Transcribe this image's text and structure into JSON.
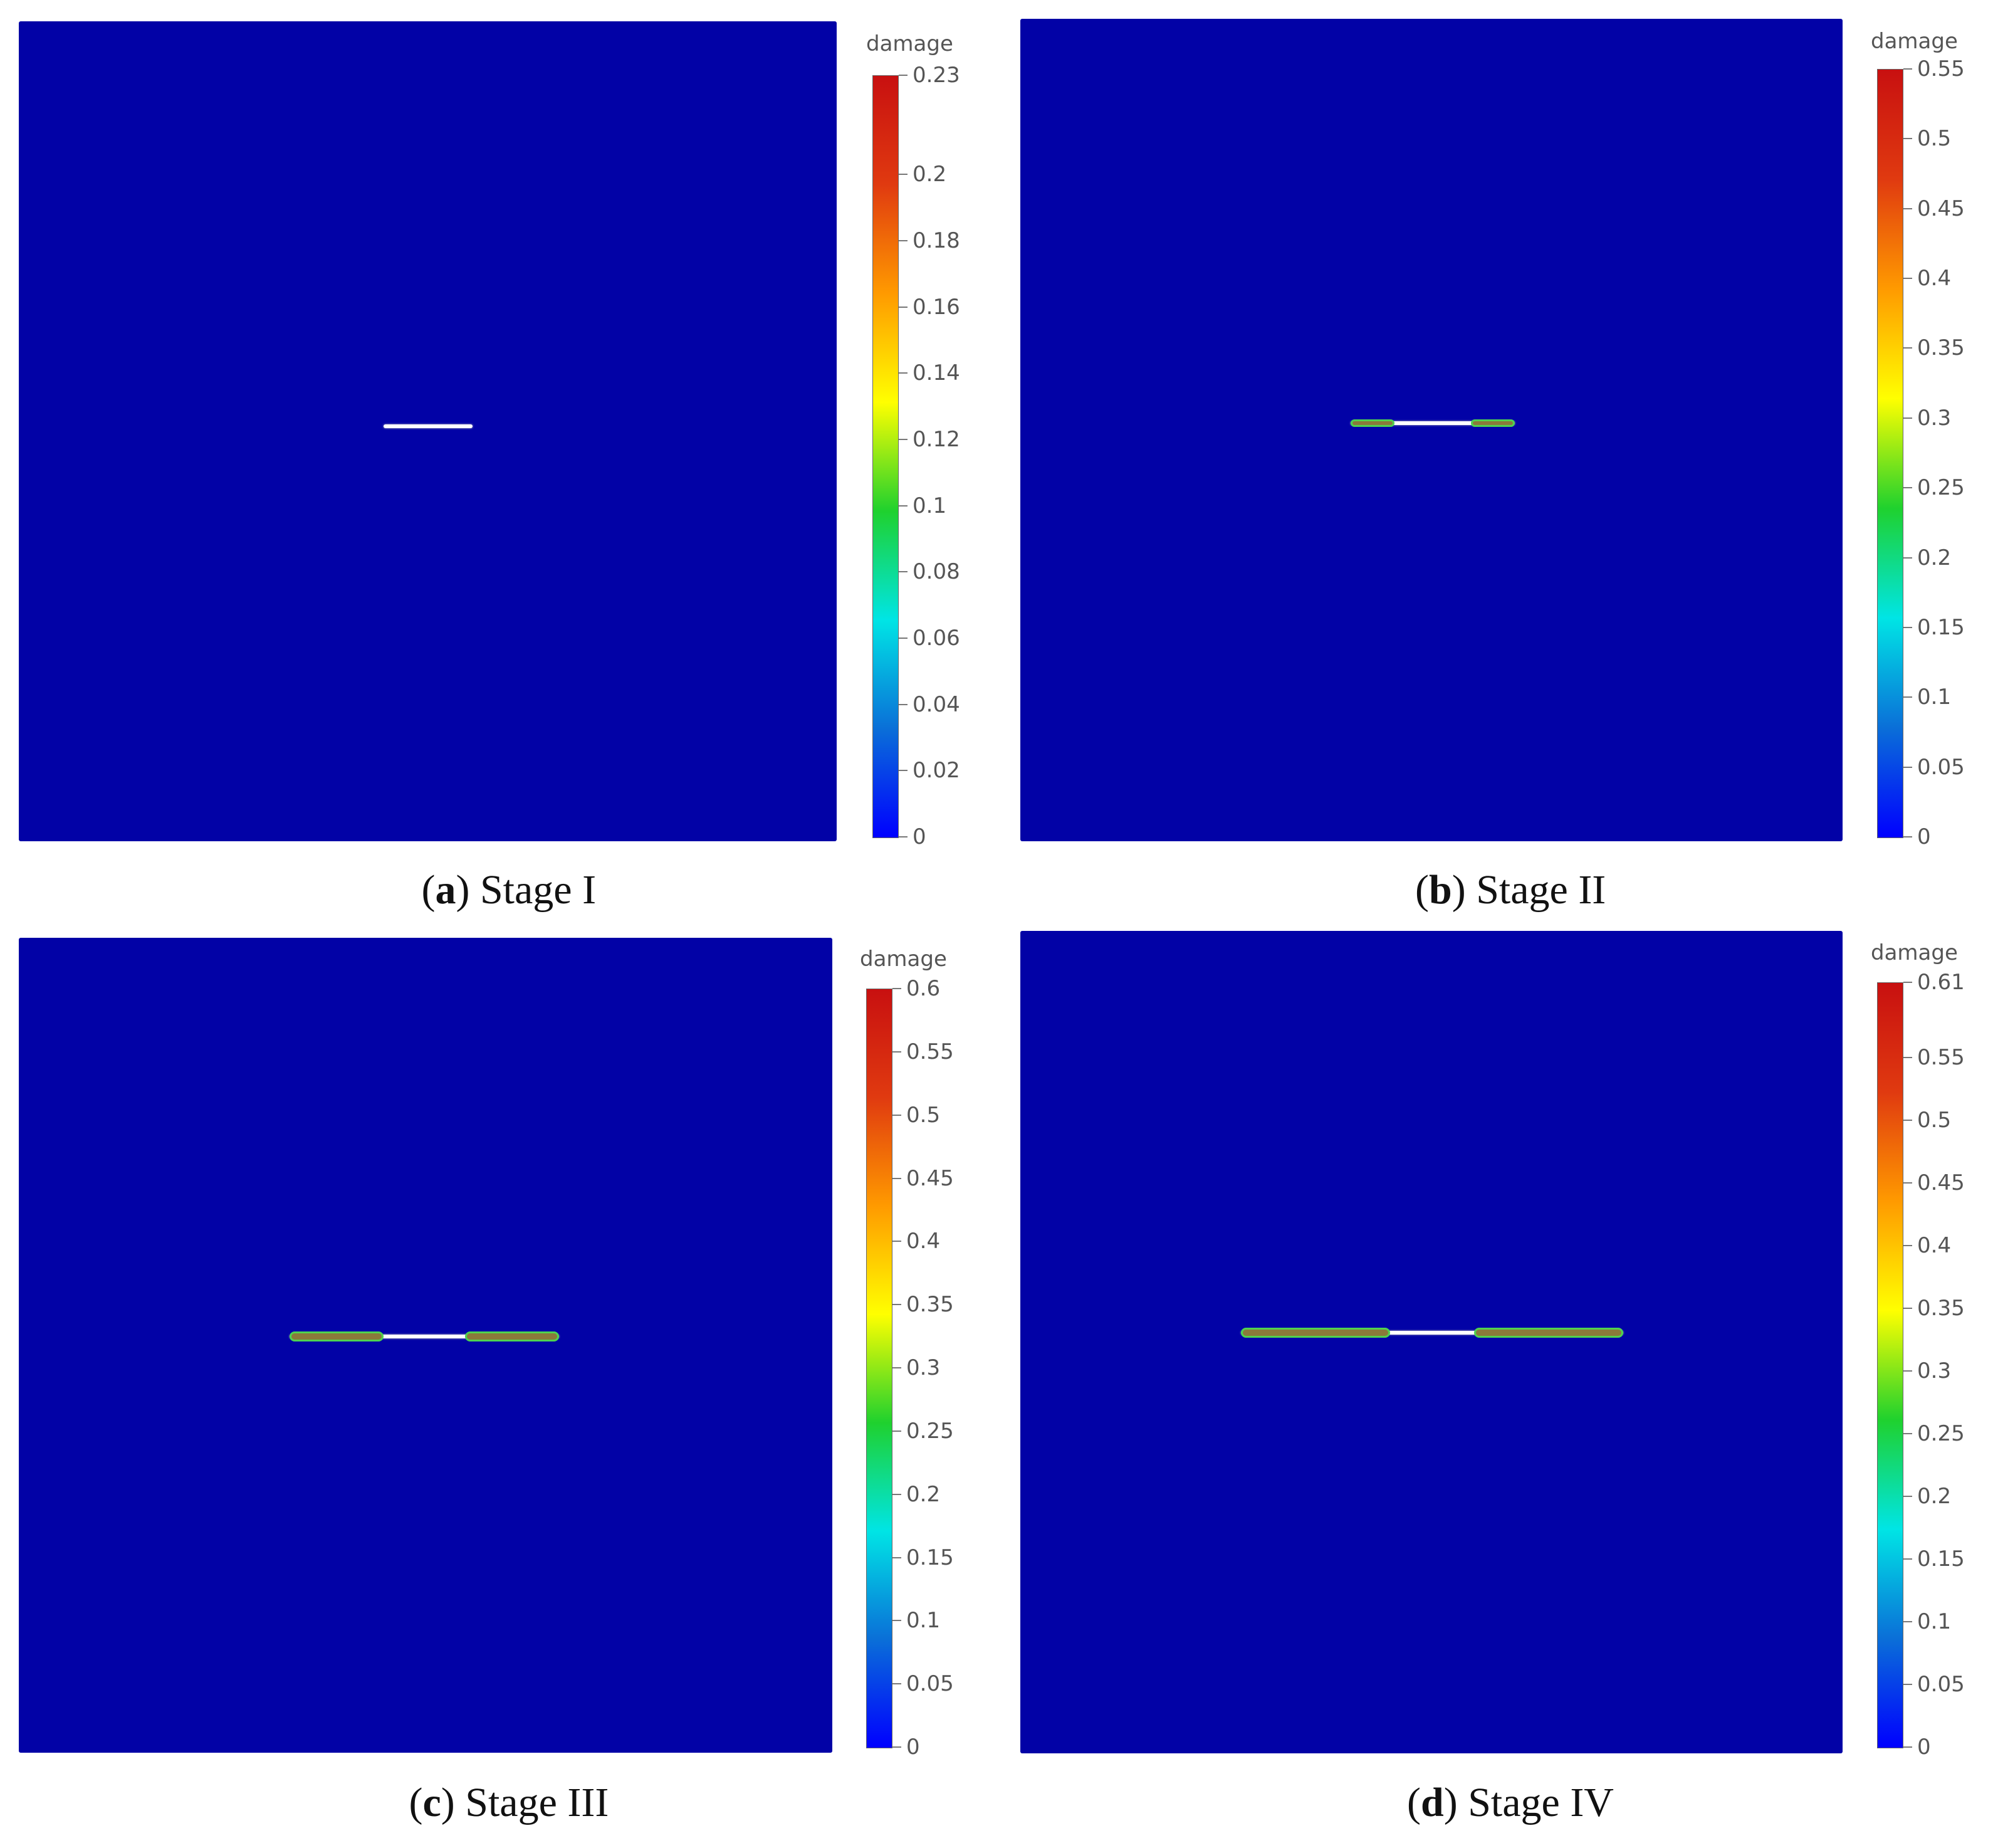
{
  "colormap": {
    "stops": [
      "#0000ff",
      "#0a6fd8",
      "#00e5e5",
      "#1fd12e",
      "#ffff00",
      "#ff9a00",
      "#e03a10",
      "#c81010"
    ],
    "field_color": "#0202a6",
    "crack_core_color": "#ffffff",
    "crack_tip_color": "#4fd24f",
    "crack_tip_inner_color": "#8a7a3a"
  },
  "panels": [
    {
      "id": "a",
      "caption_letter": "a",
      "caption_text": "Stage I",
      "colorbar": {
        "title": "damage",
        "max": 0.23,
        "ticks": [
          {
            "value": 0.23,
            "label": "0.23"
          },
          {
            "value": 0.2,
            "label": "0.2"
          },
          {
            "value": 0.18,
            "label": "0.18"
          },
          {
            "value": 0.16,
            "label": "0.16"
          },
          {
            "value": 0.14,
            "label": "0.14"
          },
          {
            "value": 0.12,
            "label": "0.12"
          },
          {
            "value": 0.1,
            "label": "0.1"
          },
          {
            "value": 0.08,
            "label": "0.08"
          },
          {
            "value": 0.06,
            "label": "0.06"
          },
          {
            "value": 0.04,
            "label": "0.04"
          },
          {
            "value": 0.02,
            "label": "0.02"
          },
          {
            "value": 0,
            "label": "0"
          }
        ]
      }
    },
    {
      "id": "b",
      "caption_letter": "b",
      "caption_text": "Stage II",
      "colorbar": {
        "title": "damage",
        "max": 0.55,
        "ticks": [
          {
            "value": 0.55,
            "label": "0.55"
          },
          {
            "value": 0.5,
            "label": "0.5"
          },
          {
            "value": 0.45,
            "label": "0.45"
          },
          {
            "value": 0.4,
            "label": "0.4"
          },
          {
            "value": 0.35,
            "label": "0.35"
          },
          {
            "value": 0.3,
            "label": "0.3"
          },
          {
            "value": 0.25,
            "label": "0.25"
          },
          {
            "value": 0.2,
            "label": "0.2"
          },
          {
            "value": 0.15,
            "label": "0.15"
          },
          {
            "value": 0.1,
            "label": "0.1"
          },
          {
            "value": 0.05,
            "label": "0.05"
          },
          {
            "value": 0,
            "label": "0"
          }
        ]
      }
    },
    {
      "id": "c",
      "caption_letter": "c",
      "caption_text": "Stage III",
      "colorbar": {
        "title": "damage",
        "max": 0.6,
        "ticks": [
          {
            "value": 0.6,
            "label": "0.6"
          },
          {
            "value": 0.55,
            "label": "0.55"
          },
          {
            "value": 0.5,
            "label": "0.5"
          },
          {
            "value": 0.45,
            "label": "0.45"
          },
          {
            "value": 0.4,
            "label": "0.4"
          },
          {
            "value": 0.35,
            "label": "0.35"
          },
          {
            "value": 0.3,
            "label": "0.3"
          },
          {
            "value": 0.25,
            "label": "0.25"
          },
          {
            "value": 0.2,
            "label": "0.2"
          },
          {
            "value": 0.15,
            "label": "0.15"
          },
          {
            "value": 0.1,
            "label": "0.1"
          },
          {
            "value": 0.05,
            "label": "0.05"
          },
          {
            "value": 0,
            "label": "0"
          }
        ]
      }
    },
    {
      "id": "d",
      "caption_letter": "d",
      "caption_text": "Stage IV",
      "colorbar": {
        "title": "damage",
        "max": 0.61,
        "ticks": [
          {
            "value": 0.61,
            "label": "0.61"
          },
          {
            "value": 0.55,
            "label": "0.55"
          },
          {
            "value": 0.5,
            "label": "0.5"
          },
          {
            "value": 0.45,
            "label": "0.45"
          },
          {
            "value": 0.4,
            "label": "0.4"
          },
          {
            "value": 0.35,
            "label": "0.35"
          },
          {
            "value": 0.3,
            "label": "0.3"
          },
          {
            "value": 0.25,
            "label": "0.25"
          },
          {
            "value": 0.2,
            "label": "0.2"
          },
          {
            "value": 0.15,
            "label": "0.15"
          },
          {
            "value": 0.1,
            "label": "0.1"
          },
          {
            "value": 0.05,
            "label": "0.05"
          },
          {
            "value": 0,
            "label": "0"
          }
        ]
      }
    }
  ]
}
